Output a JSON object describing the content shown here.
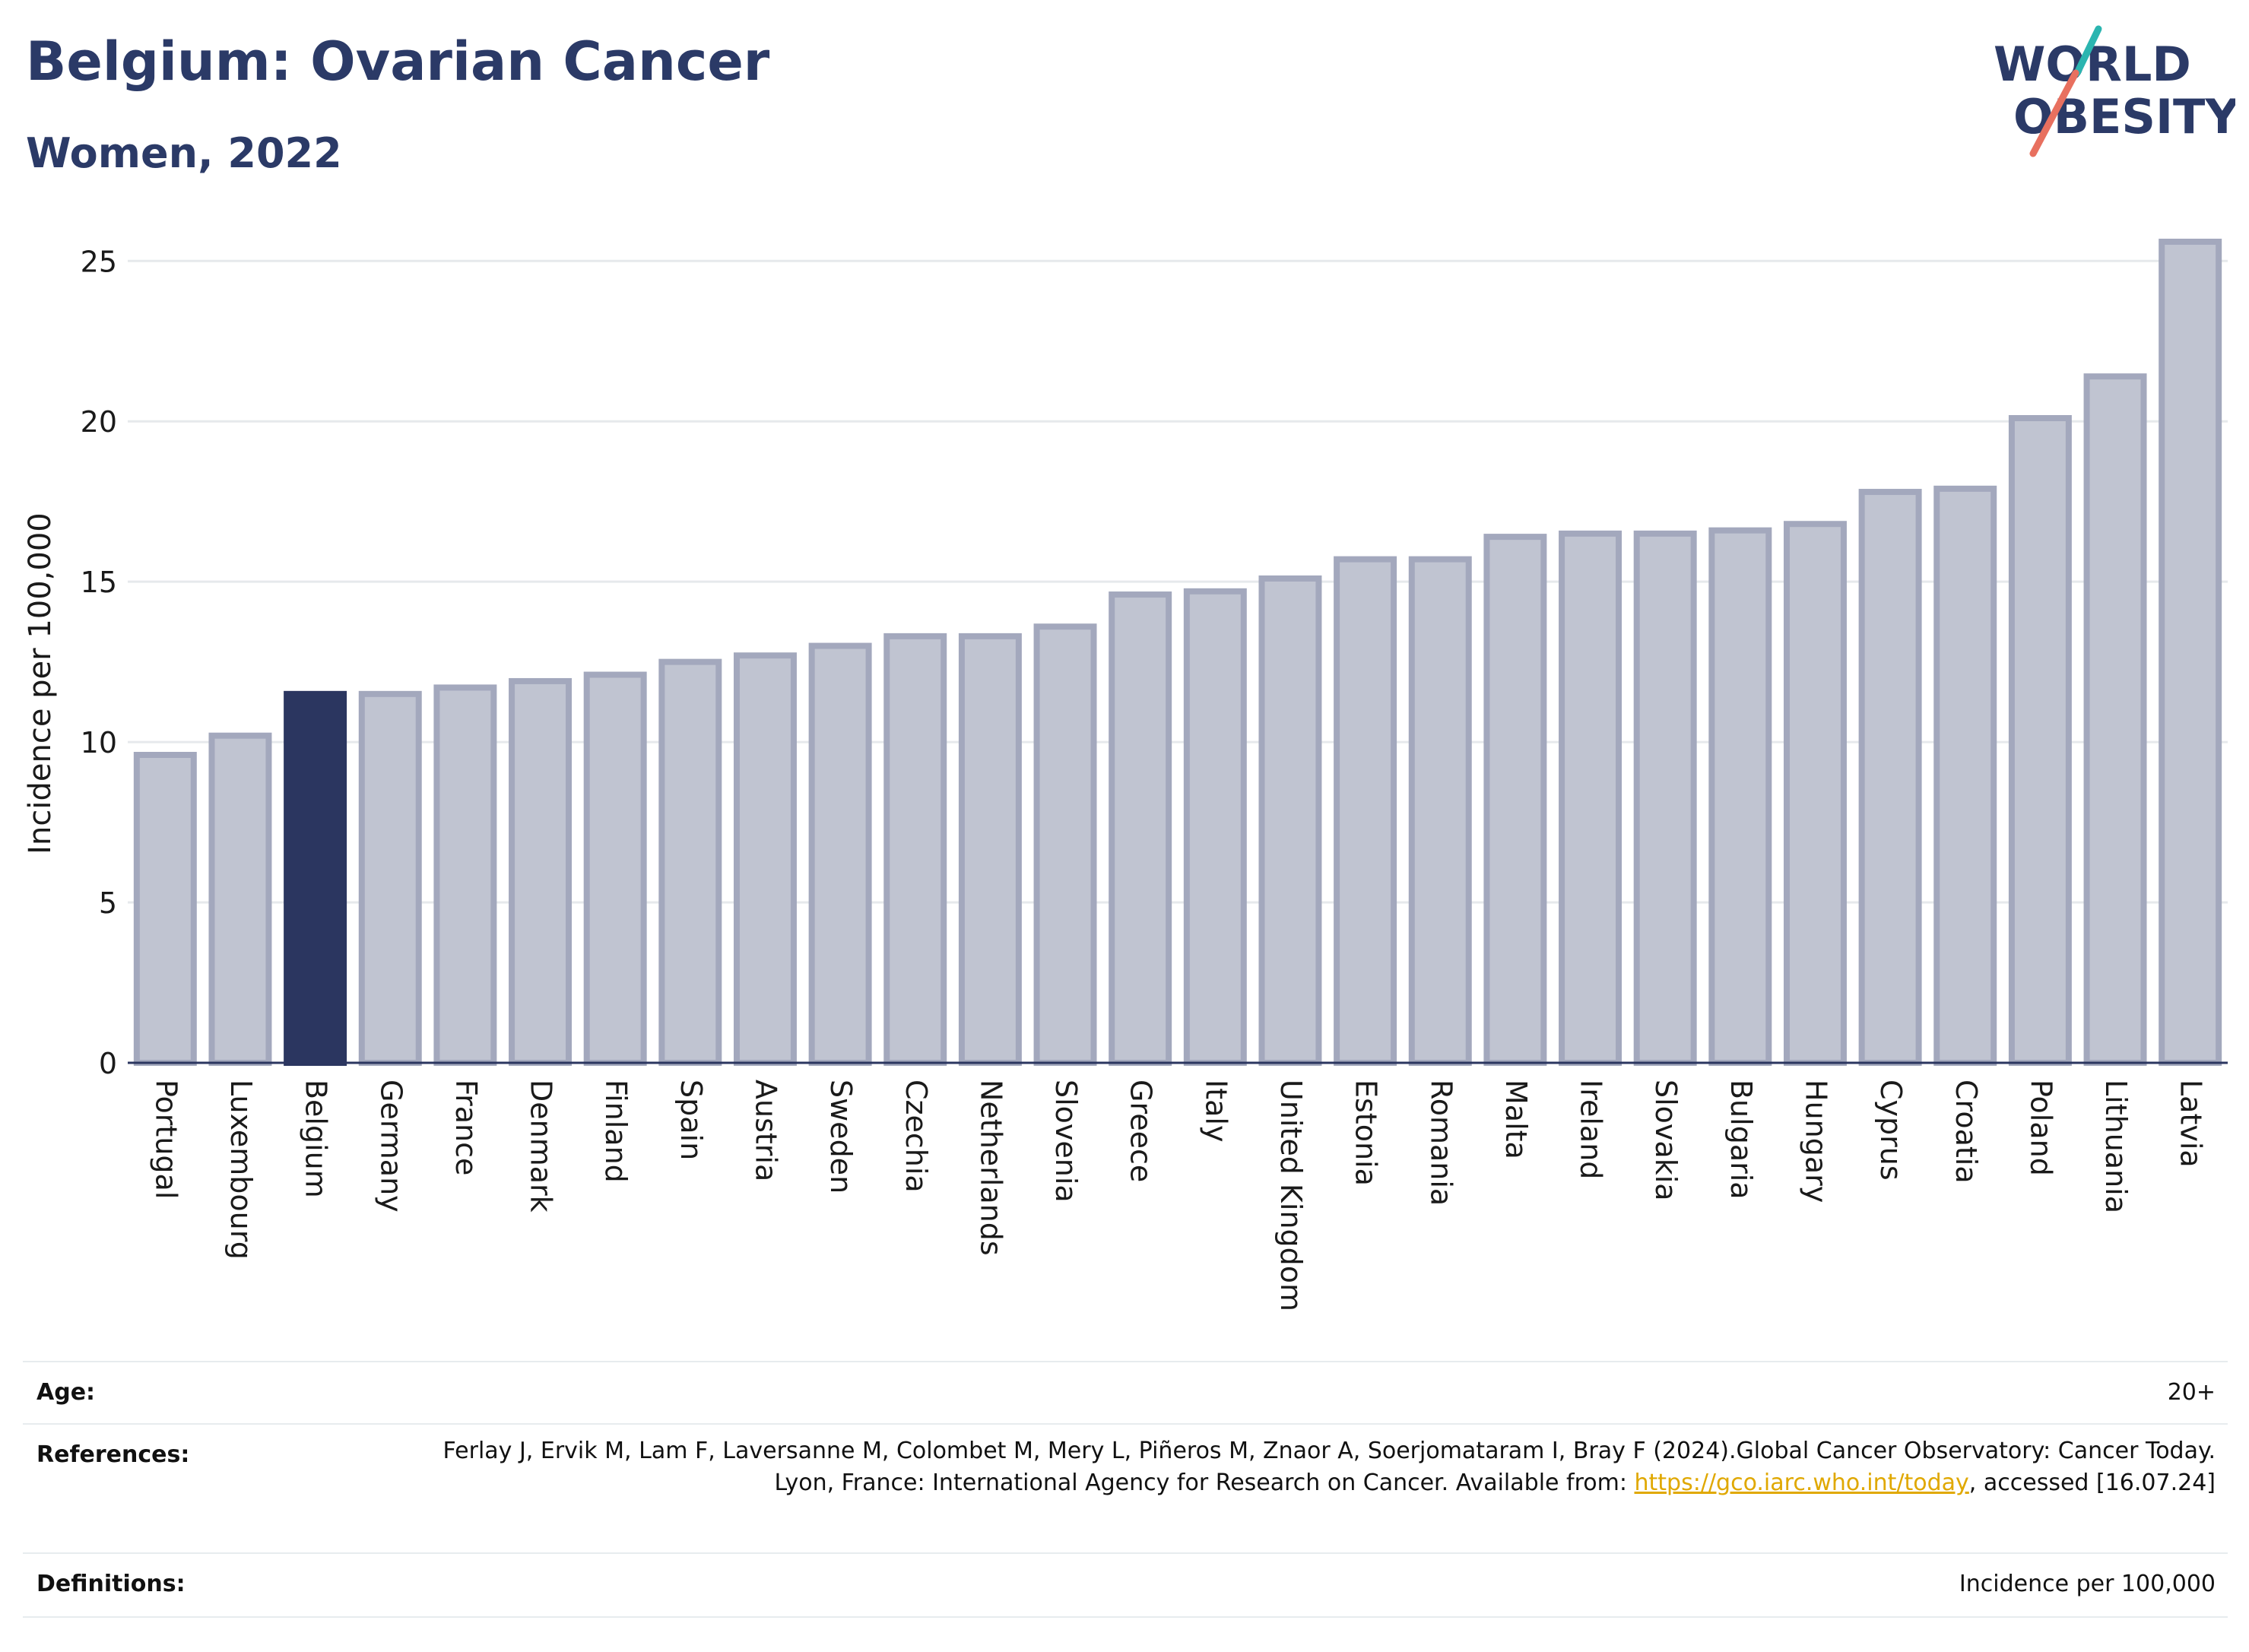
{
  "header": {
    "title": "Belgium: Ovarian Cancer",
    "subtitle": "Women, 2022"
  },
  "logo": {
    "line1": "WORLD",
    "line2": "OBESITY",
    "accent_colors": [
      "#2bb5b0",
      "#e8705f"
    ]
  },
  "chart_data": {
    "type": "bar",
    "categories": [
      "Portugal",
      "Luxembourg",
      "Belgium",
      "Germany",
      "France",
      "Denmark",
      "Finland",
      "Spain",
      "Austria",
      "Sweden",
      "Czechia",
      "Netherlands",
      "Slovenia",
      "Greece",
      "Italy",
      "United Kingdom",
      "Estonia",
      "Romania",
      "Malta",
      "Ireland",
      "Slovakia",
      "Bulgaria",
      "Hungary",
      "Cyprus",
      "Croatia",
      "Poland",
      "Lithuania",
      "Latvia"
    ],
    "values": [
      9.6,
      10.2,
      11.5,
      11.5,
      11.7,
      11.9,
      12.1,
      12.5,
      12.7,
      13.0,
      13.3,
      13.3,
      13.6,
      14.6,
      14.7,
      15.1,
      15.7,
      15.7,
      16.4,
      16.5,
      16.5,
      16.6,
      16.8,
      17.8,
      17.9,
      20.1,
      21.4,
      25.6
    ],
    "highlight": "Belgium",
    "ylabel": "Incidence per 100,000",
    "xlabel": "",
    "ylim": [
      0,
      26.5
    ],
    "yticks": [
      0,
      5,
      10,
      15,
      20,
      25
    ],
    "grid": true,
    "colors": {
      "bar": "#c0c4d1",
      "bar_border": "#a3a8bd",
      "highlight": "#2b3660",
      "axis": "#2b3660",
      "grid": "#e6e9ec"
    }
  },
  "info": {
    "age_label": "Age:",
    "age_value": "20+",
    "references_label": "References:",
    "references_text": "Ferlay J, Ervik M, Lam F, Laversanne M, Colombet M, Mery L, Piñeros M, Znaor A, Soerjomataram I, Bray F (2024).Global Cancer Observatory: Cancer Today. Lyon, France: International Agency for Research on Cancer. Available from:",
    "references_link": "https://gco.iarc.who.int/today",
    "references_tail": ", accessed [16.07.24]",
    "definitions_label": "Definitions:",
    "definitions_value": "Incidence per 100,000"
  }
}
